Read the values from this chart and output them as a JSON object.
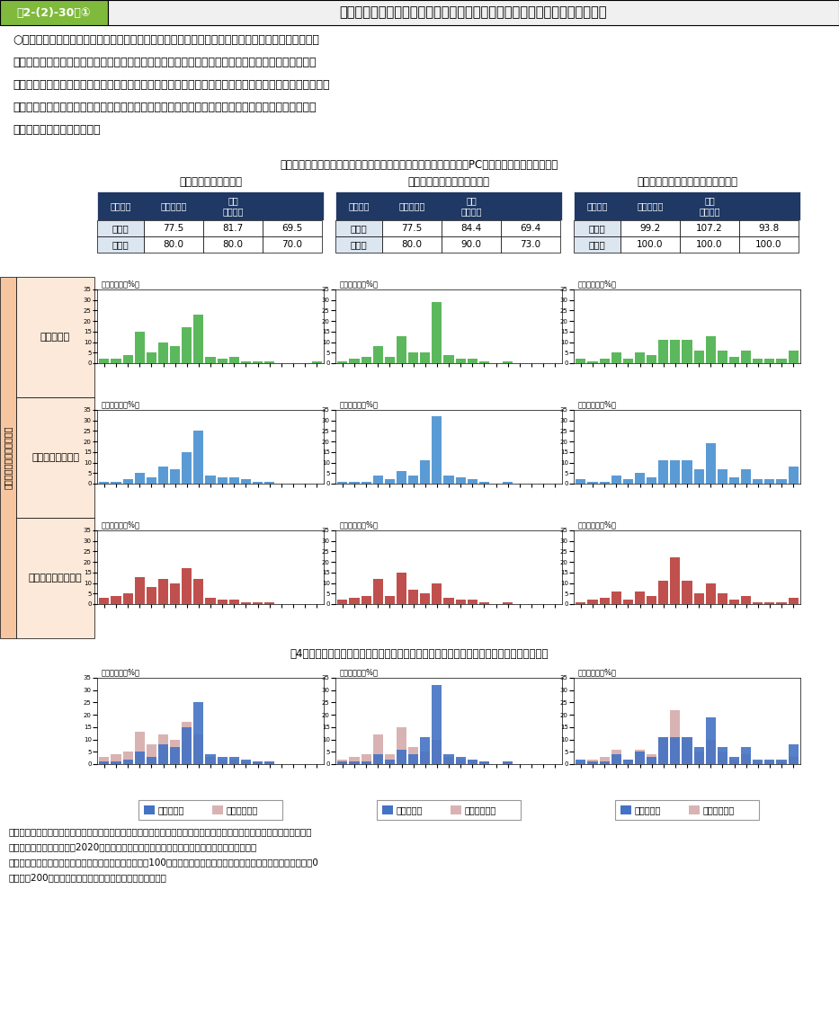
{
  "title_left": "第2-(2)-30図①",
  "title_right": "テレワークでの業務における環境整備と生産性や満足度等の関係（労働者）",
  "subtitle": "テレワーク時の設備（インターネット環境やテレワークで利用するPCの性能等）は充実している",
  "body_text_lines": [
    "○　テレワークを実施する際の環境整備の状況による仕事の「生産性・効率性」「充実感・満足感」",
    "「ワーク・ライフ・バランスの実現度」の指標の違いをみると、「テレワーク時の設備は充実してい",
    "る」に該当すると回答した者は、そうでない者よりも、「生産性・効率性」「充実感・満足感」ともに、",
    "平均値、中央値がいずれも高い。また、「ワーク・ライフ・バランスの実現度」は、中央値は変わら",
    "ないものの、平均値は高い。"
  ],
  "col_titles": [
    "仕事の生産性・効率性",
    "仕事を通じた充実感・満足感",
    "ワーク・ライフ・バランスの実現度"
  ],
  "row_titles": [
    "（１）合計",
    "（２）該当する者",
    "（３）該当しない者"
  ],
  "side_label": "テレワークの経験がある者",
  "table_headers": [
    "全回答者",
    "該当する者",
    "該当\nしない者"
  ],
  "tables": [
    {
      "平均値": [
        77.5,
        81.7,
        69.5
      ],
      "中央値": [
        80.0,
        80.0,
        70.0
      ]
    },
    {
      "平均値": [
        77.5,
        84.4,
        69.4
      ],
      "中央値": [
        80.0,
        90.0,
        73.0
      ]
    },
    {
      "平均値": [
        99.2,
        107.2,
        93.8
      ],
      "中央値": [
        100.0,
        100.0,
        100.0
      ]
    }
  ],
  "green_color": "#5cb85c",
  "blue_color": "#5b9bd5",
  "red_color": "#c0504d",
  "overlay_blue": "#4472c4",
  "overlay_red": "#d9b3b3",
  "bar_data": {
    "row0_col0": [
      2,
      2,
      4,
      15,
      5,
      10,
      8,
      17,
      23,
      3,
      2,
      3,
      1,
      1,
      1,
      0,
      0,
      0,
      1
    ],
    "row0_col1": [
      1,
      2,
      3,
      8,
      3,
      13,
      5,
      5,
      29,
      4,
      2,
      2,
      1,
      0,
      1,
      0,
      0,
      0,
      0
    ],
    "row0_col2": [
      2,
      1,
      2,
      5,
      2,
      5,
      4,
      11,
      11,
      11,
      6,
      13,
      6,
      3,
      6,
      2,
      2,
      2,
      6
    ],
    "row1_col0": [
      1,
      1,
      2,
      5,
      3,
      8,
      7,
      15,
      25,
      4,
      3,
      3,
      2,
      1,
      1,
      0,
      0,
      0,
      0
    ],
    "row1_col1": [
      1,
      1,
      1,
      4,
      2,
      6,
      4,
      11,
      32,
      4,
      3,
      2,
      1,
      0,
      1,
      0,
      0,
      0,
      0
    ],
    "row1_col2": [
      2,
      1,
      1,
      4,
      2,
      5,
      3,
      11,
      11,
      11,
      7,
      19,
      7,
      3,
      7,
      2,
      2,
      2,
      8
    ],
    "row2_col0": [
      3,
      4,
      5,
      13,
      8,
      12,
      10,
      17,
      12,
      3,
      2,
      2,
      1,
      1,
      1,
      0,
      0,
      0,
      0
    ],
    "row2_col1": [
      2,
      3,
      4,
      12,
      4,
      15,
      7,
      5,
      10,
      3,
      2,
      2,
      1,
      0,
      1,
      0,
      0,
      0,
      0
    ],
    "row2_col2": [
      1,
      2,
      3,
      6,
      2,
      6,
      4,
      11,
      22,
      11,
      5,
      10,
      5,
      2,
      4,
      1,
      1,
      1,
      3
    ]
  },
  "overlay_data": {
    "blue_col0": [
      1,
      1,
      2,
      5,
      3,
      8,
      7,
      15,
      25,
      4,
      3,
      3,
      2,
      1,
      1,
      0,
      0,
      0,
      0
    ],
    "red_col0": [
      3,
      4,
      5,
      13,
      8,
      12,
      10,
      17,
      12,
      3,
      2,
      2,
      1,
      1,
      1,
      0,
      0,
      0,
      0
    ],
    "blue_col1": [
      1,
      1,
      1,
      4,
      2,
      6,
      4,
      11,
      32,
      4,
      3,
      2,
      1,
      0,
      1,
      0,
      0,
      0,
      0
    ],
    "red_col1": [
      2,
      3,
      4,
      12,
      4,
      15,
      7,
      5,
      10,
      3,
      2,
      2,
      1,
      0,
      1,
      0,
      0,
      0,
      0
    ],
    "blue_col2": [
      2,
      1,
      1,
      4,
      2,
      5,
      3,
      11,
      11,
      11,
      7,
      19,
      7,
      3,
      7,
      2,
      2,
      2,
      8
    ],
    "red_col2": [
      1,
      2,
      3,
      6,
      2,
      6,
      4,
      11,
      22,
      11,
      5,
      10,
      5,
      2,
      4,
      1,
      1,
      1,
      3
    ]
  },
  "footnote4": "（4）（上図の中段・下段のグラフの差異をみるために、両グラフを重ねて表示したもの）",
  "source_text_lines": [
    "資料出所　（独）労働政策研究・研修機構「新型コロナウイルス感染拡大の仕事や生活への影響に関する調査（ＪＩＬＰ",
    "　　　　　Ｔ第３回）」（2020年）をもとに厚生労働省政策統括官付政策統括室にて独自集計",
    "（注）　各図の数値については、オフィスで働く場合を100として、テレワークを実施することによる主観的な変化を0",
    "　　　〜200の範囲で答えた数値の回答割合を示している。"
  ],
  "title_bar_left_bg": "#7fba3c",
  "title_bar_right_bg": "#f0f0f0",
  "header_dark_bg": "#1f3864",
  "table_row0_label_bg": "#dce6f1",
  "table_row1_label_bg": "#dce6f1",
  "side_outer_bg": "#f5c6a0",
  "side_inner_bg": "#fde9d9",
  "legend_box_bg": "#f2f2f2"
}
